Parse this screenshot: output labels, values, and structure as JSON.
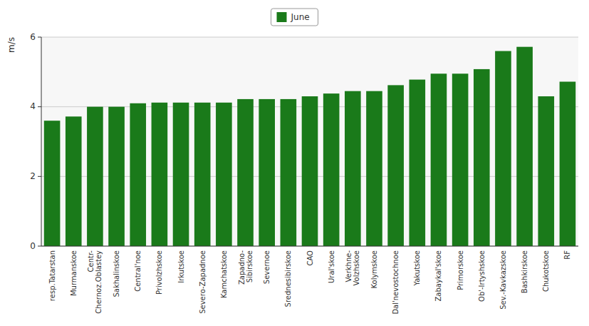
{
  "chart_data": {
    "type": "bar",
    "categories": [
      "resp.Tatarstan",
      "Murmanskoe",
      "Centr-\nChernoz.Oblastey",
      "Sakhalinskoe",
      "Central'noe",
      "Privolzhskoe",
      "Irkutskoe",
      "Severo-Zapadnoe",
      "Kamchatskoe",
      "Zapadno-\nSibirskoe",
      "Severnoe",
      "Srednesibirskoe",
      "CAO",
      "Ural'skoe",
      "Verkhne-\nVolzhskoe",
      "Kolymskoe",
      "Dal'nevostochnoe",
      "Yakutskoe",
      "Zabaykal'skoe",
      "Primorskoe",
      "Ob'-Irtyshskoe",
      "Sev.-Kavkazskoe",
      "Bashkirskoe",
      "Chukotskoe",
      "RF"
    ],
    "series": [
      {
        "name": "June",
        "color": "#1a7a1a",
        "values": [
          3.6,
          3.72,
          4.0,
          4.0,
          4.1,
          4.12,
          4.12,
          4.12,
          4.12,
          4.22,
          4.22,
          4.22,
          4.3,
          4.38,
          4.45,
          4.45,
          4.62,
          4.78,
          4.95,
          4.95,
          5.08,
          5.6,
          5.72,
          4.3,
          4.72
        ]
      }
    ],
    "ylabel": "m/s",
    "ylim": [
      0,
      6
    ],
    "yticks": [
      0,
      2,
      4,
      6
    ],
    "grid": true,
    "legend": "top"
  }
}
